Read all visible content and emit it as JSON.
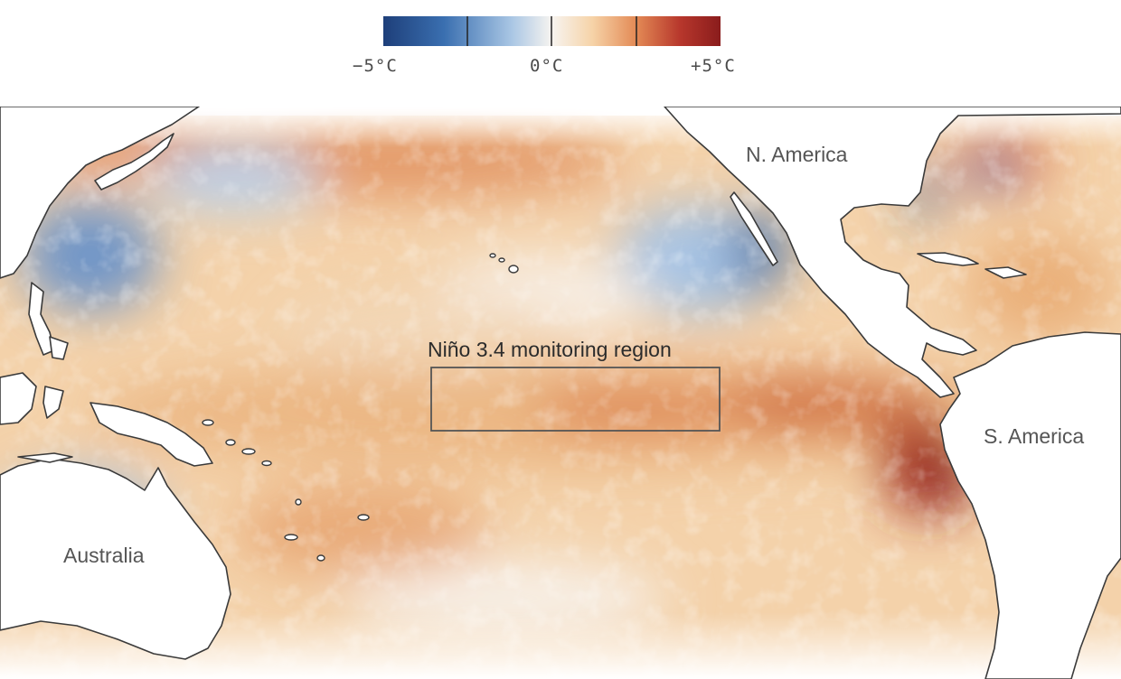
{
  "legend": {
    "min_label": "−5°C",
    "zero_label": "0°C",
    "max_label": "+5°C",
    "color_stops": [
      "#1e3f7a",
      "#3a6fb0",
      "#a9c6e4",
      "#f7f4f0",
      "#f6d3a8",
      "#e38a55",
      "#b7372c",
      "#8a1c1c"
    ]
  },
  "map": {
    "labels": {
      "north_america": "N. America",
      "south_america": "S. America",
      "australia": "Australia"
    },
    "region": {
      "label": "Niño 3.4 monitoring region"
    },
    "colors": {
      "warm_light": "#f6d6ae",
      "warm_mid": "#eab07a",
      "warm_strong": "#d9723f",
      "warm_hot": "#a93124",
      "cool_light": "#cddff0",
      "cool_mid": "#8fb3da",
      "cool_strong": "#3f6faa",
      "land": "#ffffff",
      "coast": "#3a3a3a"
    }
  }
}
